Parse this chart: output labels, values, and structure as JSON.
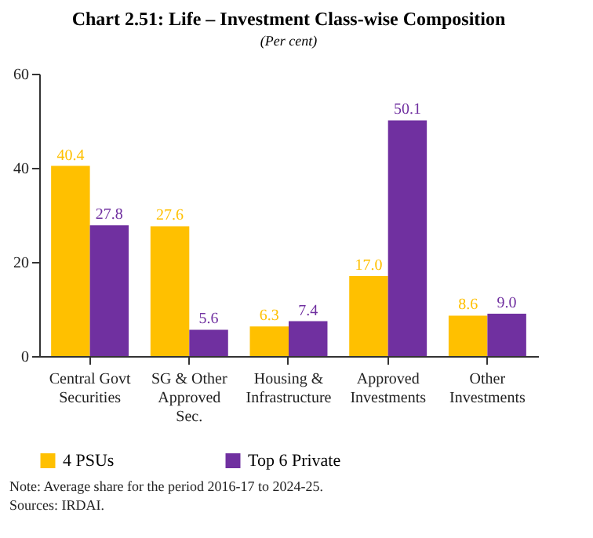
{
  "chart_data": {
    "type": "bar",
    "title": "Chart 2.51: Life – Investment Class-wise Composition",
    "subtitle": "(Per cent)",
    "categories": [
      "Central Govt Securities",
      "SG & Other Approved Sec.",
      "Housing & Infrastructure",
      "Approved Investments",
      "Other Investments"
    ],
    "series": [
      {
        "name": "4 PSUs",
        "color": "#ffc000",
        "values": [
          40.4,
          27.6,
          6.3,
          17.0,
          8.6
        ],
        "value_labels": [
          "40.4",
          "27.6",
          "6.3",
          "17.0",
          "8.6"
        ]
      },
      {
        "name": "Top 6 Private",
        "color": "#7030a0",
        "values": [
          27.8,
          5.6,
          7.4,
          50.1,
          9.0
        ],
        "value_labels": [
          "27.8",
          "5.6",
          "7.4",
          "50.1",
          "9.0"
        ]
      }
    ],
    "ylim": [
      0,
      60
    ],
    "yticks": [
      0,
      20,
      40,
      60
    ],
    "grid": false,
    "legend": "bottom",
    "annotations": [
      "Note: Average share for the period 2016-17 to 2024-25.",
      "Sources: IRDAI."
    ]
  }
}
